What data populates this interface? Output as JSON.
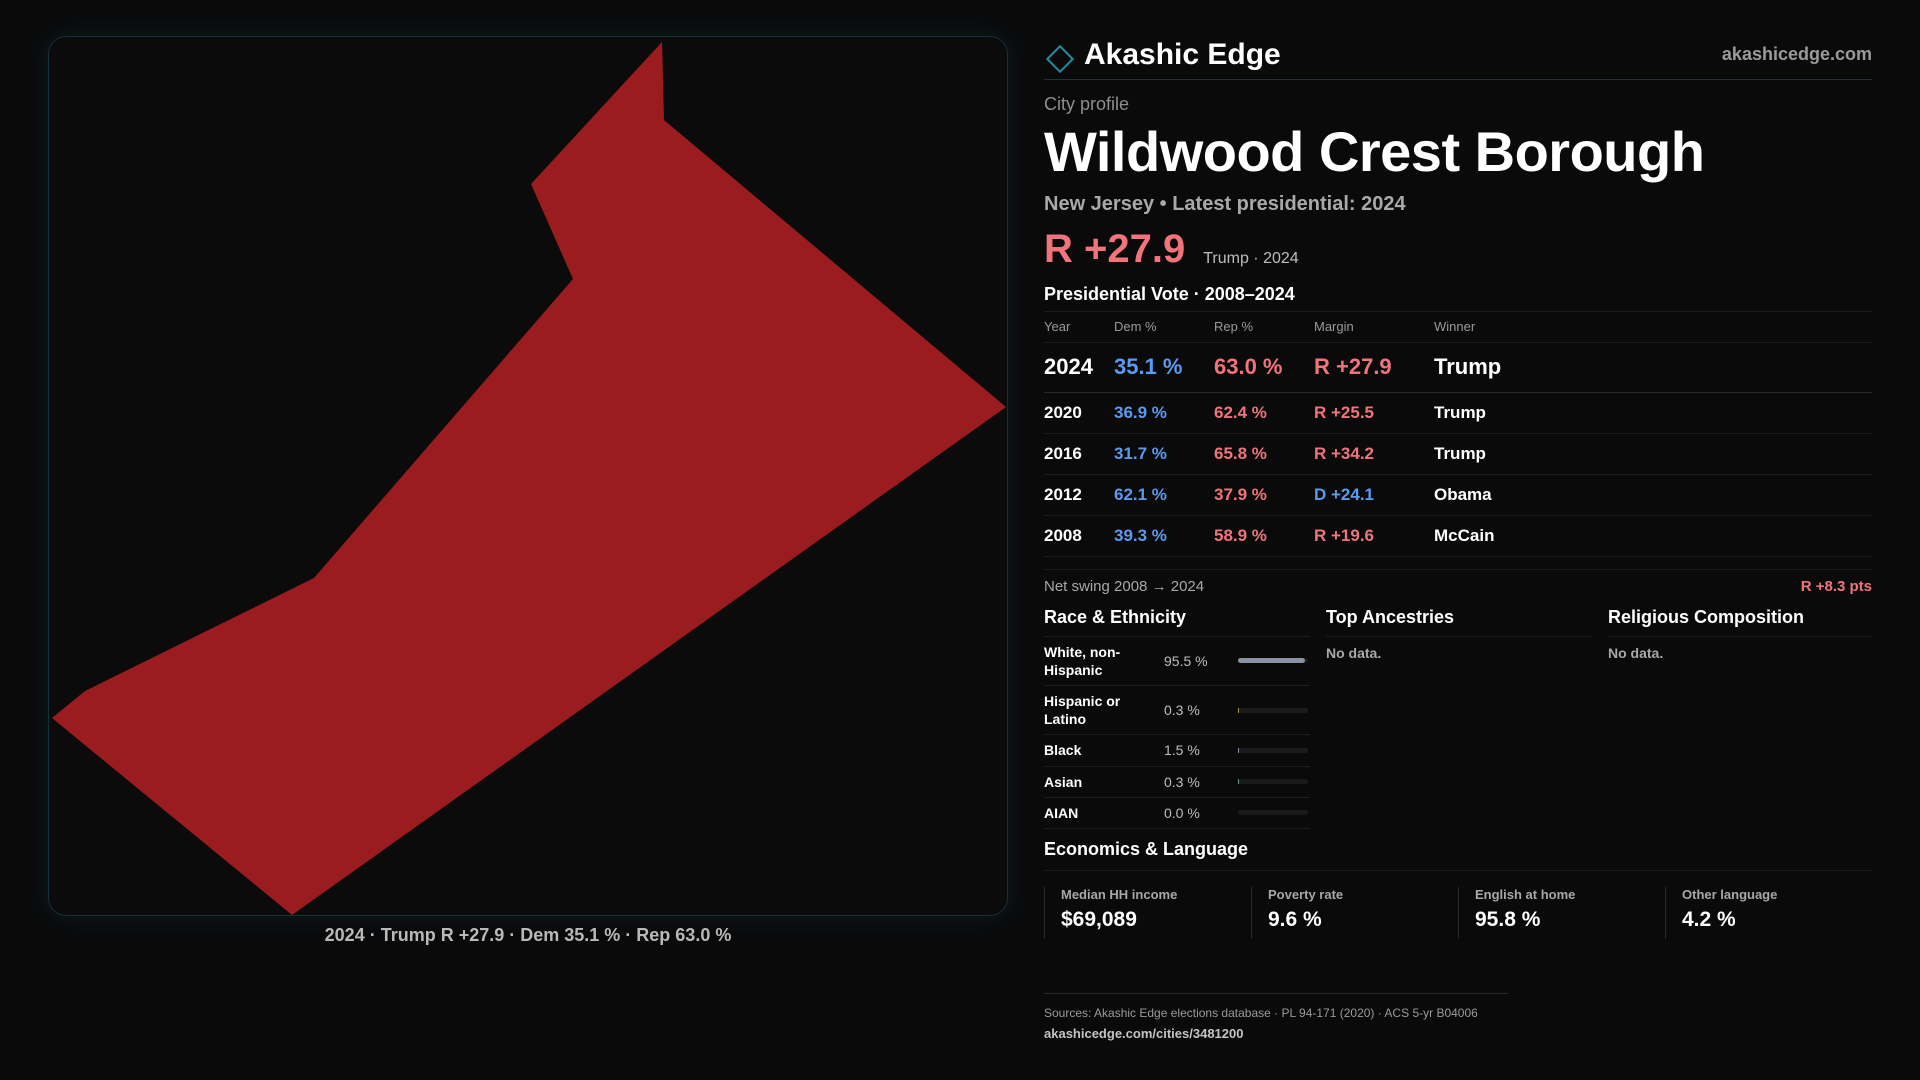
{
  "map": {
    "fill_color": "#9b1c1f",
    "caption": "2024 · Trump R +27.9 · Dem 35.1 % · Rep 63.0 %"
  },
  "header": {
    "brand": "Akashic Edge",
    "brand_icon": "diamond-icon",
    "domain": "akashicedge.com"
  },
  "profile": {
    "kicker": "City profile",
    "title": "Wildwood Crest Borough",
    "subtitle": "New Jersey • Latest presidential: 2024",
    "margin": "R +27.9",
    "margin_note": "Trump · 2024"
  },
  "votes": {
    "title": "Presidential Vote · 2008–2024",
    "headers": [
      "Year",
      "Dem %",
      "Rep %",
      "Margin",
      "Winner"
    ],
    "rows": [
      {
        "year": "2024",
        "dem": "35.1 %",
        "rep": "63.0 %",
        "margin": "R +27.9",
        "winner": "Trump"
      },
      {
        "year": "2020",
        "dem": "36.9 %",
        "rep": "62.4 %",
        "margin": "R +25.5",
        "winner": "Trump"
      },
      {
        "year": "2016",
        "dem": "31.7 %",
        "rep": "65.8 %",
        "margin": "R +34.2",
        "winner": "Trump"
      },
      {
        "year": "2012",
        "dem": "62.1 %",
        "rep": "37.9 %",
        "margin": "D +24.1",
        "winner": "Obama"
      },
      {
        "year": "2008",
        "dem": "39.3 %",
        "rep": "58.9 %",
        "margin": "R +19.6",
        "winner": "McCain"
      }
    ],
    "swing_label": "Net swing 2008 → 2024",
    "swing_value": "R +8.3 pts"
  },
  "race": {
    "title": "Race & Ethnicity",
    "rows": [
      {
        "label": "White, non-Hispanic",
        "value": "95.5 %",
        "pct": 95.5,
        "color": "#8a93a6"
      },
      {
        "label": "Hispanic or Latino",
        "value": "0.3 %",
        "pct": 0.3,
        "color": "#c98a3a"
      },
      {
        "label": "Black",
        "value": "1.5 %",
        "pct": 1.5,
        "color": "#8a93a6"
      },
      {
        "label": "Asian",
        "value": "0.3 %",
        "pct": 0.3,
        "color": "#5aa08a"
      },
      {
        "label": "AIAN",
        "value": "0.0 %",
        "pct": 0.0,
        "color": "#8a93a6"
      }
    ]
  },
  "ancestries": {
    "title": "Top Ancestries",
    "empty": "No data."
  },
  "religion": {
    "title": "Religious Composition",
    "empty": "No data."
  },
  "economics": {
    "title": "Economics & Language",
    "cells": [
      {
        "label": "Median HH income",
        "value": "$69,089"
      },
      {
        "label": "Poverty rate",
        "value": "9.6 %"
      },
      {
        "label": "English at home",
        "value": "95.8 %"
      },
      {
        "label": "Other language",
        "value": "4.2 %"
      }
    ]
  },
  "sources": {
    "line": "Sources: Akashic Edge elections database · PL 94-171 (2020) · ACS 5-yr B04006",
    "url": "akashicedge.com/cities/3481200"
  }
}
